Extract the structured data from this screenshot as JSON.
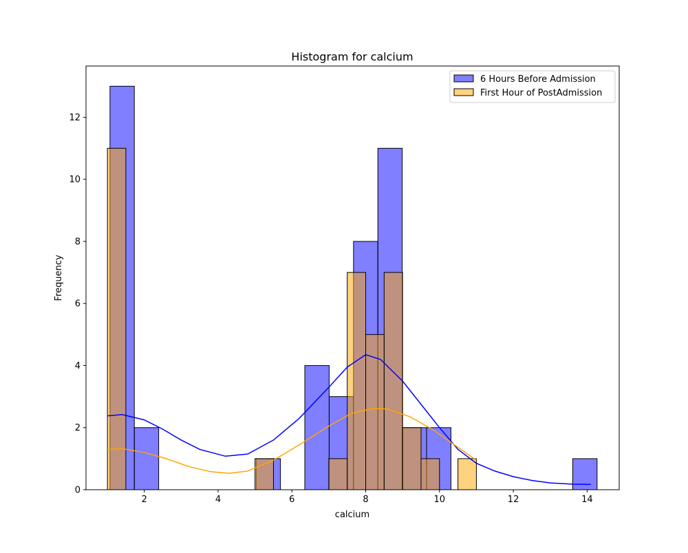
{
  "chart_data": {
    "type": "bar",
    "title": "Histogram for calcium",
    "xlabel": "calcium",
    "ylabel": "Frequency",
    "xlim": [
      0.42,
      14.87
    ],
    "ylim": [
      0,
      13.65
    ],
    "xticks": [
      2,
      4,
      6,
      8,
      10,
      12,
      14
    ],
    "yticks": [
      0,
      2,
      4,
      6,
      8,
      10,
      12
    ],
    "grid": false,
    "legend_position": "top-right",
    "series": [
      {
        "name": "6 Hours Before Admission",
        "color": "#0000ff",
        "fill_opacity": 0.5,
        "bin_edges": [
          1.07,
          1.73,
          2.39,
          3.05,
          3.71,
          4.37,
          5.03,
          5.69,
          6.35,
          7.01,
          7.67,
          8.33,
          8.99,
          9.65,
          10.31,
          10.97,
          11.63,
          12.29,
          12.95,
          13.61,
          14.27
        ],
        "counts": [
          13,
          2,
          0,
          0,
          0,
          0,
          1,
          0,
          4,
          3,
          8,
          11,
          2,
          2,
          0,
          0,
          0,
          0,
          0,
          1
        ],
        "kde": [
          [
            1.0,
            2.38
          ],
          [
            1.4,
            2.42
          ],
          [
            2.0,
            2.25
          ],
          [
            2.5,
            1.95
          ],
          [
            3.0,
            1.6
          ],
          [
            3.5,
            1.3
          ],
          [
            4.2,
            1.08
          ],
          [
            4.8,
            1.15
          ],
          [
            5.5,
            1.6
          ],
          [
            6.2,
            2.3
          ],
          [
            7.0,
            3.3
          ],
          [
            7.5,
            3.95
          ],
          [
            8.0,
            4.35
          ],
          [
            8.4,
            4.2
          ],
          [
            9.0,
            3.5
          ],
          [
            9.5,
            2.75
          ],
          [
            10.0,
            2.0
          ],
          [
            10.5,
            1.3
          ],
          [
            11.0,
            0.85
          ],
          [
            11.5,
            0.6
          ],
          [
            12.0,
            0.42
          ],
          [
            12.5,
            0.3
          ],
          [
            13.0,
            0.22
          ],
          [
            13.6,
            0.18
          ],
          [
            14.1,
            0.17
          ]
        ]
      },
      {
        "name": "First Hour of PostAdmission",
        "color": "#ffa500",
        "fill_opacity": 0.5,
        "bin_edges": [
          1.0,
          1.5,
          2.0,
          2.5,
          3.0,
          3.5,
          4.0,
          4.5,
          5.0,
          5.5,
          6.0,
          6.5,
          7.0,
          7.5,
          8.0,
          8.5,
          9.0,
          9.5,
          10.0,
          10.5,
          11.0
        ],
        "counts": [
          11,
          0,
          0,
          0,
          0,
          0,
          0,
          0,
          1,
          0,
          0,
          0,
          1,
          7,
          5,
          7,
          2,
          1,
          0,
          1
        ],
        "kde": [
          [
            1.0,
            1.3
          ],
          [
            1.4,
            1.32
          ],
          [
            2.0,
            1.2
          ],
          [
            2.6,
            1.0
          ],
          [
            3.2,
            0.75
          ],
          [
            3.8,
            0.58
          ],
          [
            4.3,
            0.53
          ],
          [
            4.8,
            0.6
          ],
          [
            5.5,
            0.95
          ],
          [
            6.2,
            1.45
          ],
          [
            7.0,
            2.05
          ],
          [
            7.6,
            2.45
          ],
          [
            8.2,
            2.62
          ],
          [
            8.6,
            2.6
          ],
          [
            9.2,
            2.35
          ],
          [
            9.8,
            1.95
          ],
          [
            10.4,
            1.45
          ],
          [
            11.0,
            0.95
          ]
        ]
      }
    ]
  }
}
